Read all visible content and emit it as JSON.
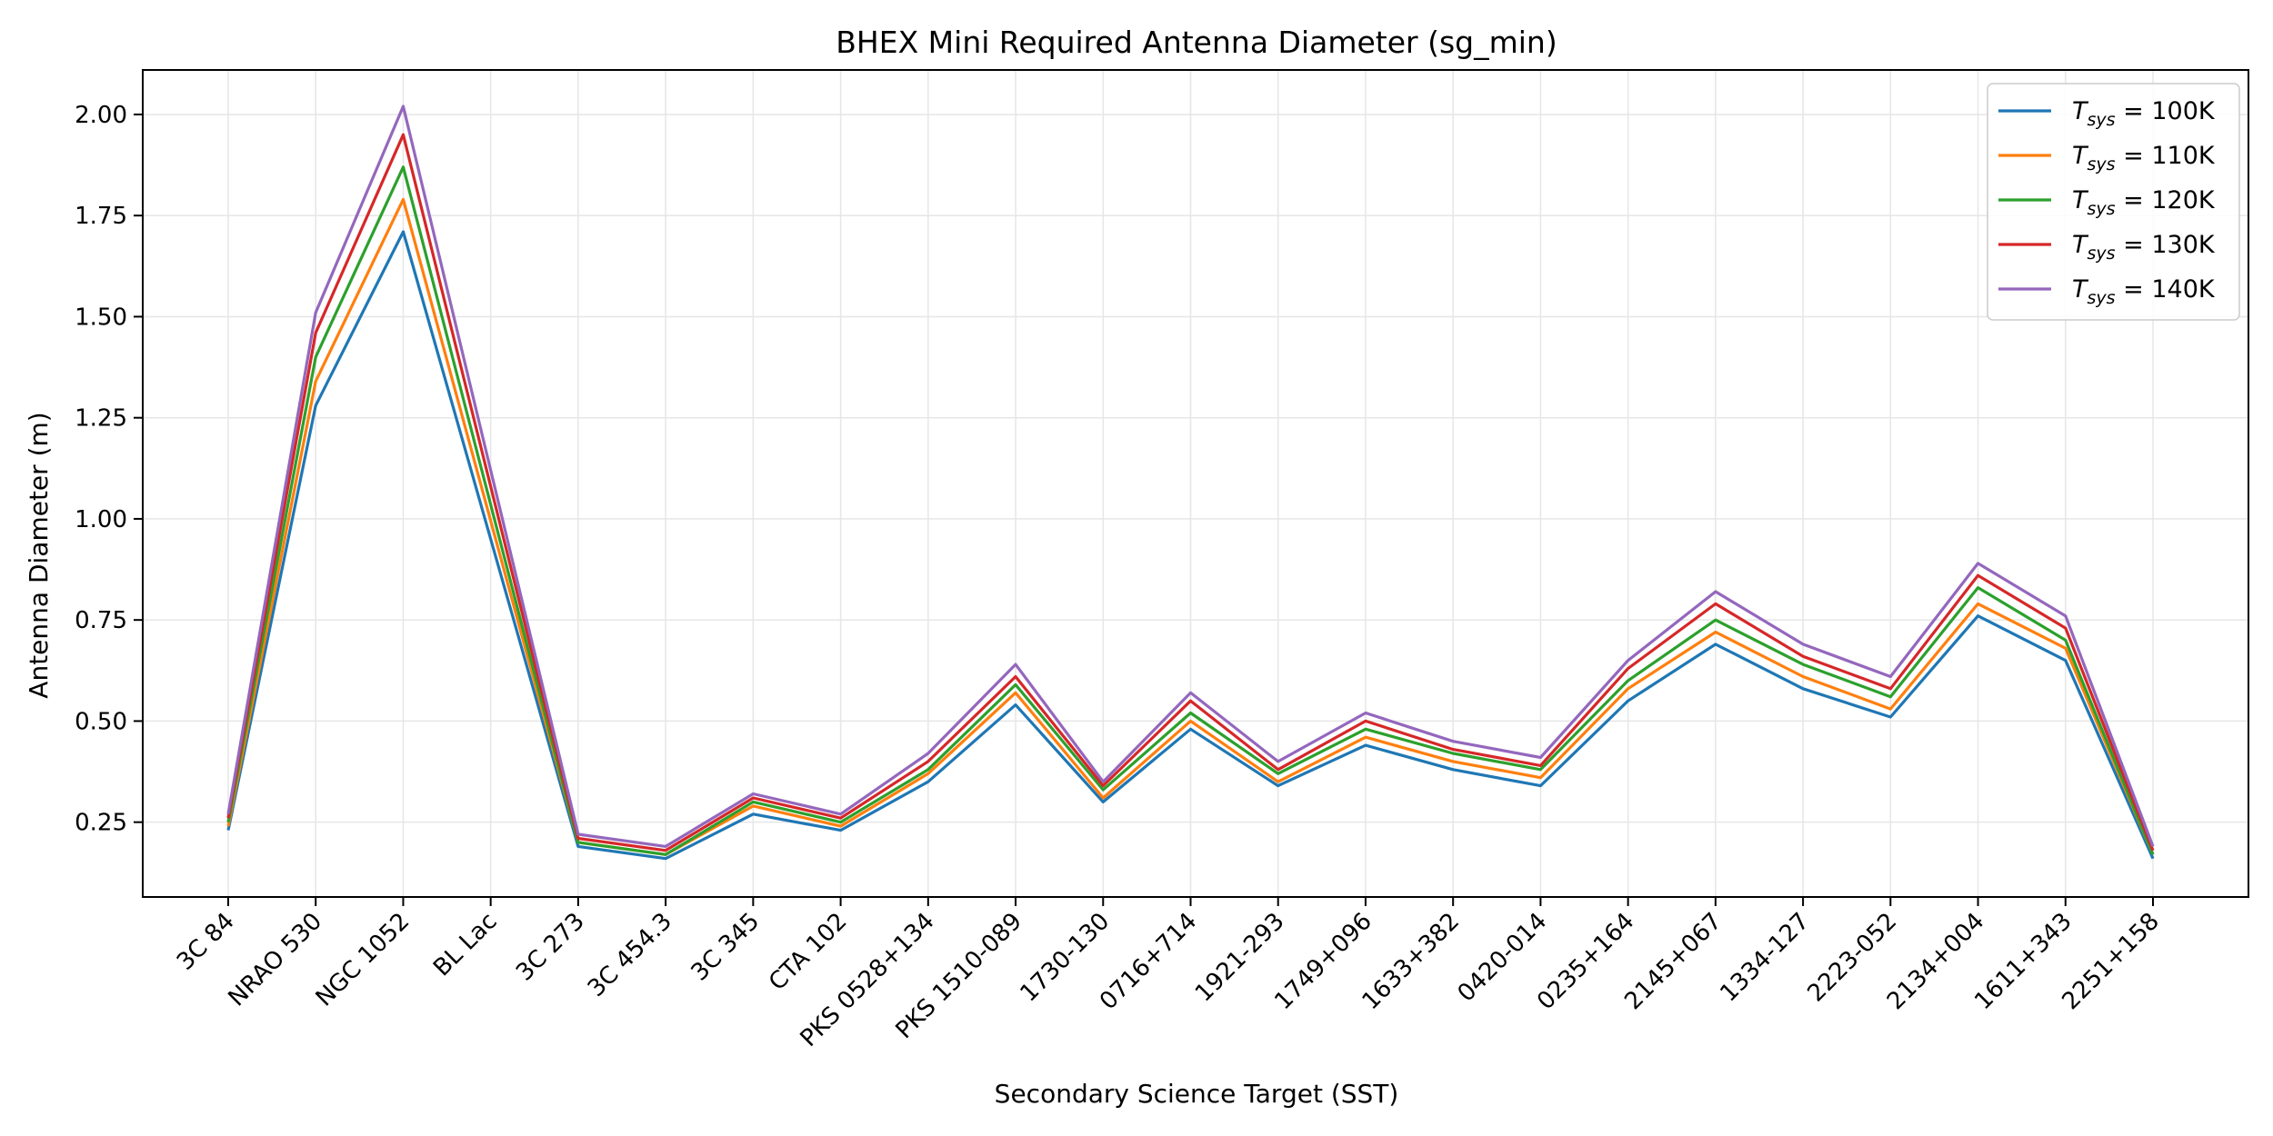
{
  "chart_data": {
    "type": "line",
    "title": "BHEX Mini Required Antenna Diameter (sg_min)",
    "xlabel": "Secondary Science Target (SST)",
    "ylabel": "Antenna Diameter (m)",
    "ylim": [
      0.065,
      2.11
    ],
    "yticks": [
      "0.25",
      "0.50",
      "0.75",
      "1.00",
      "1.25",
      "1.50",
      "1.75",
      "2.00"
    ],
    "grid": true,
    "legend_position": "top-right",
    "categories": [
      "3C 84",
      "NRAO 530",
      "NGC 1052",
      "BL Lac",
      "3C 273",
      "3C 454.3",
      "3C 345",
      "CTA 102",
      "PKS 0528+134",
      "PKS 1510-089",
      "1730-130",
      "0716+714",
      "1921-293",
      "1749+096",
      "1633+382",
      "0420-014",
      "0235+164",
      "2145+067",
      "1334-127",
      "2223-052",
      "2134+004",
      "1611+343",
      "2251+158"
    ],
    "series": [
      {
        "name": "T_sys = 100K",
        "legend_main": "T",
        "legend_sub": "sys",
        "legend_rest": " = 100K",
        "color": "#1f77b4",
        "values": [
          0.23,
          1.28,
          1.71,
          null,
          0.19,
          0.16,
          0.27,
          0.23,
          0.35,
          0.54,
          0.3,
          0.48,
          0.34,
          0.44,
          0.38,
          0.34,
          0.55,
          0.69,
          0.58,
          0.51,
          0.76,
          0.65,
          0.16
        ]
      },
      {
        "name": "T_sys = 110K",
        "legend_main": "T",
        "legend_sub": "sys",
        "legend_rest": " = 110K",
        "color": "#ff7f0e",
        "values": [
          0.24,
          1.34,
          1.79,
          null,
          0.2,
          0.17,
          0.29,
          0.24,
          0.37,
          0.57,
          0.31,
          0.5,
          0.35,
          0.46,
          0.4,
          0.36,
          0.58,
          0.72,
          0.61,
          0.53,
          0.79,
          0.68,
          0.17
        ]
      },
      {
        "name": "T_sys = 120K",
        "legend_main": "T",
        "legend_sub": "sys",
        "legend_rest": " = 120K",
        "color": "#2ca02c",
        "values": [
          0.25,
          1.4,
          1.87,
          null,
          0.2,
          0.17,
          0.3,
          0.25,
          0.38,
          0.59,
          0.33,
          0.52,
          0.37,
          0.48,
          0.42,
          0.38,
          0.6,
          0.75,
          0.64,
          0.56,
          0.83,
          0.7,
          0.17
        ]
      },
      {
        "name": "T_sys = 130K",
        "legend_main": "T",
        "legend_sub": "sys",
        "legend_rest": " = 130K",
        "color": "#d62728",
        "values": [
          0.26,
          1.46,
          1.95,
          null,
          0.21,
          0.18,
          0.31,
          0.26,
          0.4,
          0.61,
          0.34,
          0.55,
          0.38,
          0.5,
          0.43,
          0.39,
          0.63,
          0.79,
          0.66,
          0.58,
          0.86,
          0.73,
          0.18
        ]
      },
      {
        "name": "T_sys = 140K",
        "legend_main": "T",
        "legend_sub": "sys",
        "legend_rest": " = 140K",
        "color": "#9467bd",
        "values": [
          0.27,
          1.51,
          2.02,
          null,
          0.22,
          0.19,
          0.32,
          0.27,
          0.42,
          0.64,
          0.35,
          0.57,
          0.4,
          0.52,
          0.45,
          0.41,
          0.65,
          0.82,
          0.69,
          0.61,
          0.89,
          0.76,
          0.19
        ]
      }
    ]
  }
}
